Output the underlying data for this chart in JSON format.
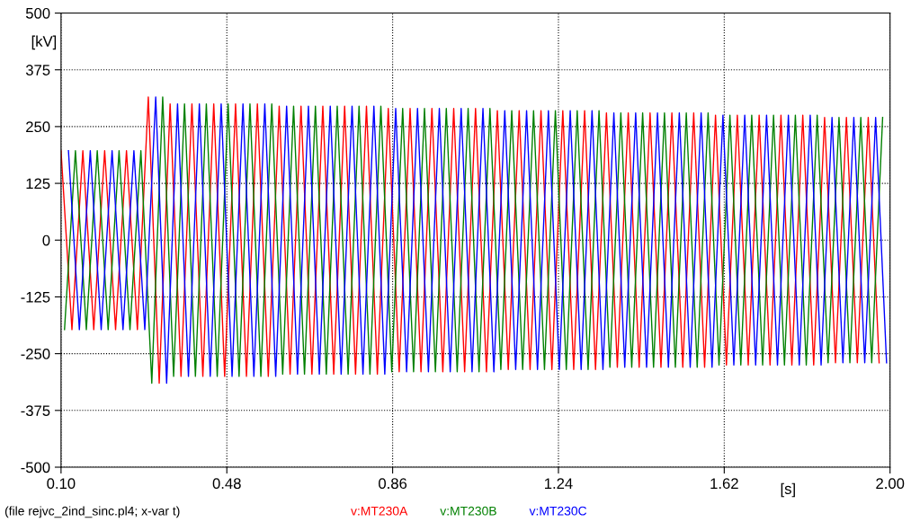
{
  "chart_data": {
    "type": "line",
    "ylabel": "[kV]",
    "xlabel": "[s]",
    "annotations": [
      "(file rejvc_2ind_sinc.pl4; x-var t)"
    ],
    "xlim": [
      0.1,
      2.0
    ],
    "ylim": [
      -500,
      500
    ],
    "xticks": [
      {
        "value": 0.1,
        "label": "0.10"
      },
      {
        "value": 0.48,
        "label": "0.48"
      },
      {
        "value": 0.86,
        "label": "0.86"
      },
      {
        "value": 1.24,
        "label": "1.24"
      },
      {
        "value": 1.62,
        "label": "1.62"
      },
      {
        "value": 2.0,
        "label": "2.00"
      }
    ],
    "yticks": [
      -500,
      -375,
      -250,
      -125,
      0,
      125,
      250,
      375,
      500
    ],
    "grid": true,
    "legend": "bottom",
    "marker": "none",
    "line_style": "solid",
    "series": [
      {
        "name": "v:MT230A",
        "color": "#ff0000",
        "x": [
          0.1,
          0.125,
          0.15,
          0.175,
          0.2,
          0.225,
          0.25,
          0.275,
          0.3,
          0.325,
          0.35,
          0.375,
          0.4,
          0.425,
          0.45,
          0.475,
          0.5,
          0.525,
          0.55,
          0.575,
          0.6,
          0.625,
          0.65,
          0.675,
          0.7,
          0.725,
          0.75,
          0.775,
          0.8,
          0.825,
          0.85,
          0.875,
          0.9,
          0.925,
          0.95,
          0.975,
          1.0,
          1.025,
          1.05,
          1.075,
          1.1,
          1.125,
          1.15,
          1.175,
          1.2,
          1.225,
          1.25,
          1.275,
          1.3,
          1.325,
          1.35,
          1.375,
          1.4,
          1.425,
          1.45,
          1.475,
          1.5,
          1.525,
          1.55,
          1.575,
          1.6,
          1.625,
          1.65,
          1.675,
          1.7,
          1.725,
          1.75,
          1.775,
          1.8,
          1.825,
          1.85,
          1.875,
          1.9,
          1.925,
          1.95,
          1.975
        ],
        "values": [
          197,
          -197,
          197,
          -197,
          197,
          -197,
          197,
          -197,
          315,
          -315,
          300,
          -300,
          300,
          -300,
          300,
          -300,
          300,
          -300,
          300,
          -300,
          295,
          -295,
          295,
          -295,
          295,
          -295,
          295,
          -295,
          295,
          -295,
          290,
          -290,
          290,
          -290,
          290,
          -290,
          290,
          -290,
          290,
          -290,
          285,
          -285,
          285,
          -285,
          285,
          -285,
          285,
          -285,
          285,
          -285,
          280,
          -280,
          280,
          -280,
          280,
          -280,
          280,
          -280,
          280,
          -280,
          275,
          -275,
          275,
          -275,
          275,
          -275,
          275,
          -275,
          275,
          -275,
          270,
          -270,
          270,
          -270,
          270,
          -270
        ]
      },
      {
        "name": "v:MT230B",
        "color": "#008000",
        "x": [
          0.108,
          0.133,
          0.158,
          0.183,
          0.208,
          0.233,
          0.258,
          0.283,
          0.308,
          0.333,
          0.358,
          0.383,
          0.408,
          0.433,
          0.458,
          0.483,
          0.508,
          0.533,
          0.558,
          0.583,
          0.608,
          0.633,
          0.658,
          0.683,
          0.708,
          0.733,
          0.758,
          0.783,
          0.808,
          0.833,
          0.858,
          0.883,
          0.908,
          0.933,
          0.958,
          0.983,
          1.008,
          1.033,
          1.058,
          1.083,
          1.108,
          1.133,
          1.158,
          1.183,
          1.208,
          1.233,
          1.258,
          1.283,
          1.308,
          1.333,
          1.358,
          1.383,
          1.408,
          1.433,
          1.458,
          1.483,
          1.508,
          1.533,
          1.558,
          1.583,
          1.608,
          1.633,
          1.658,
          1.683,
          1.708,
          1.733,
          1.758,
          1.783,
          1.808,
          1.833,
          1.858,
          1.883,
          1.908,
          1.933,
          1.958,
          1.983
        ],
        "values": [
          -197,
          197,
          -197,
          197,
          -197,
          197,
          -197,
          197,
          -315,
          315,
          -300,
          300,
          -300,
          300,
          -300,
          300,
          -300,
          300,
          -300,
          300,
          -295,
          295,
          -295,
          295,
          -295,
          295,
          -295,
          295,
          -295,
          295,
          -290,
          290,
          -290,
          290,
          -290,
          290,
          -290,
          290,
          -290,
          290,
          -285,
          285,
          -285,
          285,
          -285,
          285,
          -285,
          285,
          -285,
          285,
          -280,
          280,
          -280,
          280,
          -280,
          280,
          -280,
          280,
          -280,
          280,
          -275,
          275,
          -275,
          275,
          -275,
          275,
          -275,
          275,
          -275,
          275,
          -270,
          270,
          -270,
          270,
          -270,
          270
        ]
      },
      {
        "name": "v:MT230C",
        "color": "#0000ff",
        "x": [
          0.117,
          0.142,
          0.167,
          0.192,
          0.217,
          0.242,
          0.267,
          0.292,
          0.317,
          0.342,
          0.367,
          0.392,
          0.417,
          0.442,
          0.467,
          0.492,
          0.517,
          0.542,
          0.567,
          0.592,
          0.617,
          0.642,
          0.667,
          0.692,
          0.717,
          0.742,
          0.767,
          0.792,
          0.817,
          0.842,
          0.867,
          0.892,
          0.917,
          0.942,
          0.967,
          0.992,
          1.017,
          1.042,
          1.067,
          1.092,
          1.117,
          1.142,
          1.167,
          1.192,
          1.217,
          1.242,
          1.267,
          1.292,
          1.317,
          1.342,
          1.367,
          1.392,
          1.417,
          1.442,
          1.467,
          1.492,
          1.517,
          1.542,
          1.567,
          1.592,
          1.617,
          1.642,
          1.667,
          1.692,
          1.717,
          1.742,
          1.767,
          1.792,
          1.817,
          1.842,
          1.867,
          1.892,
          1.917,
          1.942,
          1.967,
          1.992
        ],
        "values": [
          197,
          -197,
          197,
          -197,
          197,
          -197,
          197,
          -197,
          315,
          -315,
          300,
          -300,
          300,
          -300,
          300,
          -300,
          300,
          -300,
          300,
          -300,
          295,
          -295,
          295,
          -295,
          295,
          -295,
          295,
          -295,
          295,
          -295,
          290,
          -290,
          290,
          -290,
          290,
          -290,
          290,
          -290,
          290,
          -290,
          285,
          -285,
          285,
          -285,
          285,
          -285,
          285,
          -285,
          285,
          -285,
          280,
          -280,
          280,
          -280,
          280,
          -280,
          280,
          -280,
          280,
          -280,
          275,
          -275,
          275,
          -275,
          275,
          -275,
          275,
          -275,
          275,
          -275,
          270,
          -270,
          270,
          -270,
          270,
          -270
        ]
      }
    ]
  }
}
